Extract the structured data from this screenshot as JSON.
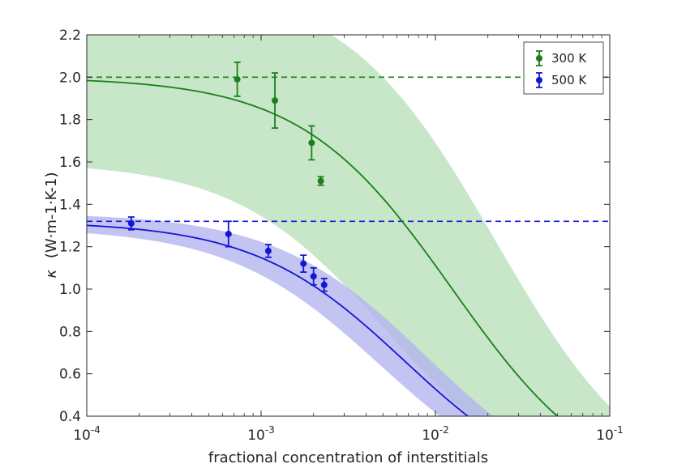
{
  "chart_data": {
    "type": "scatter",
    "title": "",
    "xlabel": "fractional concentration of interstitials",
    "ylabel_symbol": "κ",
    "ylabel_unit": "(W·m-1·K-1)",
    "xscale": "log",
    "xlim": [
      0.0001,
      0.1
    ],
    "ylim": [
      0.4,
      2.2
    ],
    "grid": false,
    "legend_position": "top-right",
    "x_ticks": [
      {
        "value": 0.0001,
        "base": "10",
        "exp": "-4"
      },
      {
        "value": 0.001,
        "base": "10",
        "exp": "-3"
      },
      {
        "value": 0.01,
        "base": "10",
        "exp": "-2"
      },
      {
        "value": 0.1,
        "base": "10",
        "exp": "-1"
      }
    ],
    "y_ticks": [
      "0.4",
      "0.6",
      "0.8",
      "1.0",
      "1.2",
      "1.4",
      "1.6",
      "1.8",
      "2.0",
      "2.2"
    ],
    "series": [
      {
        "name": "300 K",
        "color": "#1a7f1a",
        "band_color": "#c8e6c8",
        "bulk_value": 2.0,
        "points": [
          {
            "x": 0.00073,
            "y": 1.99,
            "err": 0.08
          },
          {
            "x": 0.0012,
            "y": 1.89,
            "err": 0.13
          },
          {
            "x": 0.00195,
            "y": 1.69,
            "err": 0.08
          },
          {
            "x": 0.0022,
            "y": 1.51,
            "err": 0.02
          }
        ],
        "fit": {
          "k0": 2.0,
          "a": 80,
          "k0_low": 1.6,
          "a_low": 190,
          "k0_high": 2.45,
          "a_high": 45
        }
      },
      {
        "name": "500 K",
        "color": "#1515d6",
        "band_color": "#b4b4f0",
        "bulk_value": 1.32,
        "points": [
          {
            "x": 0.00018,
            "y": 1.31,
            "err": 0.03
          },
          {
            "x": 0.00065,
            "y": 1.26,
            "err": 0.06
          },
          {
            "x": 0.0011,
            "y": 1.18,
            "err": 0.03
          },
          {
            "x": 0.00175,
            "y": 1.12,
            "err": 0.04
          },
          {
            "x": 0.002,
            "y": 1.06,
            "err": 0.04
          },
          {
            "x": 0.0023,
            "y": 1.02,
            "err": 0.03
          }
        ],
        "fit": {
          "k0": 1.32,
          "a": 150,
          "k0_low": 1.29,
          "a_low": 210,
          "k0_high": 1.36,
          "a_high": 112
        }
      }
    ]
  }
}
